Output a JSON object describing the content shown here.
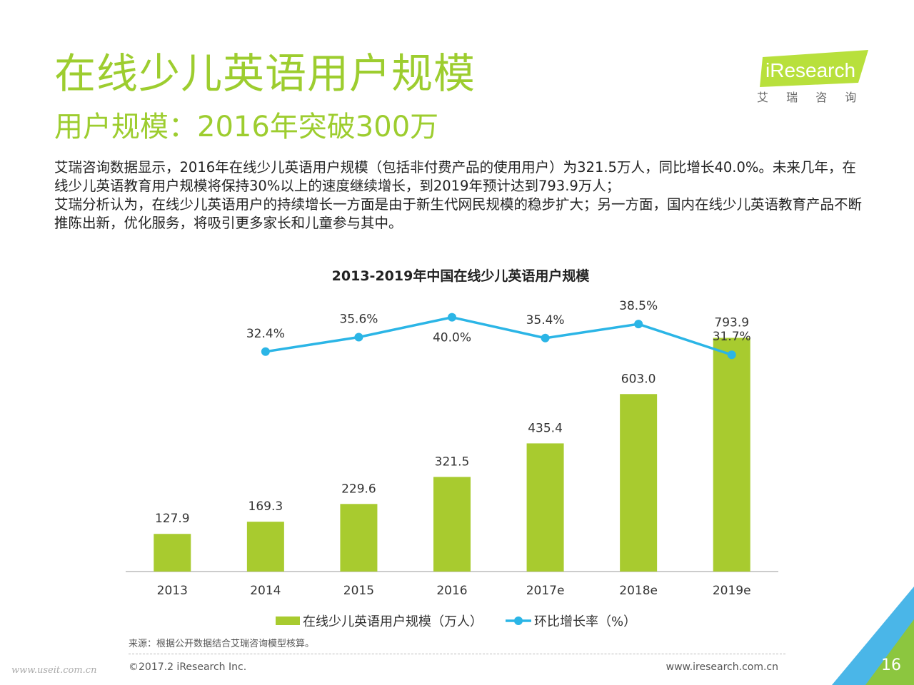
{
  "header": {
    "title": "在线少儿英语用户规模",
    "subtitle": "用户规模：2016年突破300万"
  },
  "logo": {
    "brand": "iResearch",
    "cn": "艾 瑞 咨 询",
    "color": "#b8e03c"
  },
  "description": {
    "p1": "艾瑞咨询数据显示，2016年在线少儿英语用户规模（包括非付费产品的使用用户）为321.5万人，同比增长40.0%。未来几年，在线少儿英语教育用户规模将保持30%以上的速度继续增长，到2019年预计达到793.9万人；",
    "p2": "艾瑞分析认为，在线少儿英语用户的持续增长一方面是由于新生代网民规模的稳步扩大；另一方面，国内在线少儿英语教育产品不断推陈出新，优化服务，将吸引更多家长和儿童参与其中。"
  },
  "chart_data": {
    "type": "bar",
    "title": "2013-2019年中国在线少儿英语用户规模",
    "categories": [
      "2013",
      "2014",
      "2015",
      "2016",
      "2017e",
      "2018e",
      "2019e"
    ],
    "series": [
      {
        "name": "在线少儿英语用户规模（万人）",
        "type": "bar",
        "color": "#a8cb2f",
        "values": [
          127.9,
          169.3,
          229.6,
          321.5,
          435.4,
          603.0,
          793.9
        ],
        "labels": [
          "127.9",
          "169.3",
          "229.6",
          "321.5",
          "435.4",
          "603.0",
          "793.9"
        ]
      },
      {
        "name": "环比增长率（%）",
        "type": "line",
        "color": "#2bb5e6",
        "values": [
          null,
          32.4,
          35.6,
          40.0,
          35.4,
          38.5,
          31.7
        ],
        "labels": [
          "",
          "32.4%",
          "35.6%",
          "40.0%",
          "35.4%",
          "38.5%",
          "31.7%"
        ]
      }
    ],
    "legend_position": "bottom"
  },
  "footer": {
    "source": "来源：根据公开数据结合艾瑞咨询模型核算。",
    "copyright": "©2017.2 iResearch Inc.",
    "website": "www.iresearch.com.cn",
    "watermark": "www.useit.com.cn",
    "page_number": "16"
  }
}
